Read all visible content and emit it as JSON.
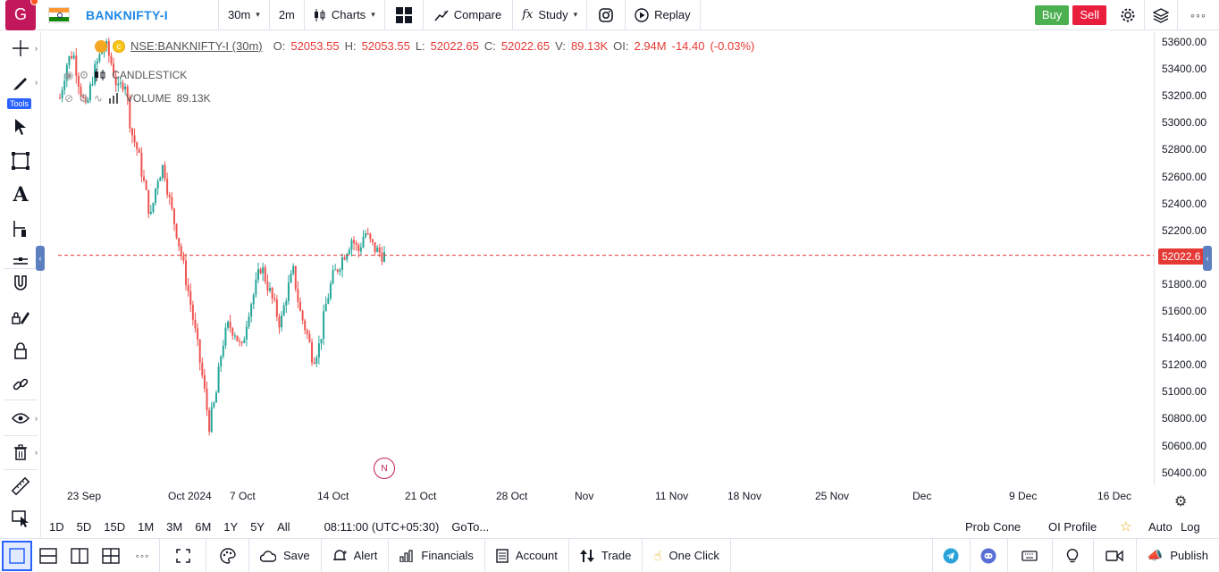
{
  "topbar": {
    "logo_letter": "G",
    "symbol": "BANKNIFTY-I",
    "interval": "30m",
    "interval2": "2m",
    "charts_label": "Charts",
    "compare_label": "Compare",
    "study_label": "Study",
    "replay_label": "Replay",
    "buy_label": "Buy",
    "sell_label": "Sell",
    "colors": {
      "buy": "#4caf50",
      "sell": "#e91e3c",
      "accent": "#2962ff"
    }
  },
  "left_tools": {
    "tools_badge": "Tools",
    "icons": [
      "crosshair-icon",
      "pencil-icon",
      "cursor-icon",
      "rectangle-icon",
      "text-icon",
      "measure-icon",
      "horizontal-lines-icon",
      "magnet-icon",
      "lock-draw-icon",
      "lock-icon",
      "link-icon",
      "eye-icon",
      "trash-icon",
      "ruler-icon",
      "screenshot-icon"
    ]
  },
  "legend": {
    "symbol_text": "NSE:BANKNIFTY-I (30m)",
    "o_label": "O:",
    "o_value": "52053.55",
    "h_label": "H:",
    "h_value": "52053.55",
    "l_label": "L:",
    "l_value": "52022.65",
    "c_label": "C:",
    "c_value": "52022.65",
    "v_label": "V:",
    "v_value": "89.13K",
    "oi_label": "OI:",
    "oi_value": "2.94M",
    "change": "-14.40",
    "change_pct": "(-0.03%)",
    "candle_label": "CANDLESTICK",
    "volume_label": "VOLUME",
    "volume_value": "89.13K",
    "news_badge": "N"
  },
  "chart_data": {
    "type": "candlestick",
    "price_ticks": [
      "53600.00",
      "53400.00",
      "53200.00",
      "53000.00",
      "52800.00",
      "52600.00",
      "52400.00",
      "52200.00",
      "52000.00",
      "51800.00",
      "51600.00",
      "51400.00",
      "51200.00",
      "51000.00",
      "50800.00",
      "50600.00",
      "50400.00"
    ],
    "last_price": "52022.6",
    "time_ticks": [
      "23 Sep",
      "Oct 2024",
      "7 Oct",
      "14 Oct",
      "21 Oct",
      "28 Oct",
      "Nov",
      "11 Nov",
      "18 Nov",
      "25 Nov",
      "Dec",
      "9 Dec",
      "16 Dec"
    ],
    "ylim": [
      50300,
      53700
    ],
    "path_close": [
      53200,
      53450,
      53550,
      53300,
      53100,
      53350,
      53500,
      53600,
      53450,
      53250,
      53350,
      52950,
      52800,
      52550,
      52300,
      52600,
      52700,
      52400,
      52200,
      51950,
      51700,
      51400,
      51100,
      50750,
      50950,
      51350,
      51500,
      51450,
      51300,
      51600,
      51750,
      51950,
      51800,
      51650,
      51500,
      51750,
      51900,
      51600,
      51450,
      51250,
      51350,
      51650,
      51850,
      51950,
      52050,
      52150,
      52050,
      52200,
      52100,
      52050,
      52022
    ]
  },
  "rangebar": {
    "ranges": [
      "1D",
      "5D",
      "15D",
      "1M",
      "3M",
      "6M",
      "1Y",
      "5Y",
      "All"
    ],
    "time": "08:11:00 (UTC+05:30)",
    "goto": "GoTo...",
    "prob_cone": "Prob Cone",
    "oi_profile": "OI Profile",
    "auto": "Auto",
    "log": "Log"
  },
  "bottombar": {
    "save": "Save",
    "alert": "Alert",
    "financials": "Financials",
    "account": "Account",
    "trade": "Trade",
    "one_click": "One Click",
    "publish": "Publish"
  }
}
